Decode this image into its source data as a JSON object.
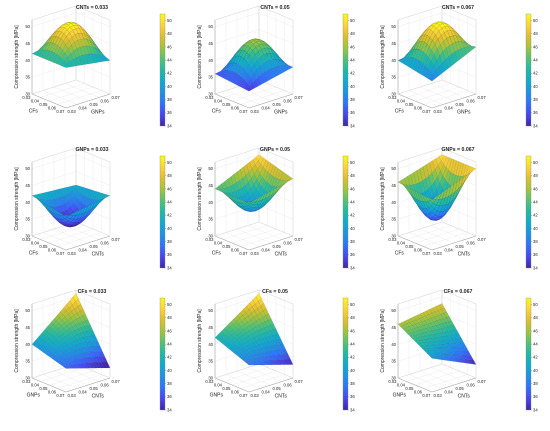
{
  "colormap": [
    "#3e26a8",
    "#4745f1",
    "#2f72fb",
    "#1d92e5",
    "#0fabce",
    "#20b9a6",
    "#54c272",
    "#a1c43c",
    "#dcbf2e",
    "#fcd23a",
    "#f9fb15"
  ],
  "colorbar_ticks": [
    "34",
    "36",
    "38",
    "40",
    "42",
    "44",
    "46",
    "48",
    "50"
  ],
  "chart_data": [
    {
      "type": "surface",
      "title": "CNTs = 0.033",
      "xlabel": "CFs",
      "ylabel": "GNPs",
      "zlabel": "Compression strength [MPa]",
      "x_ticks": [
        "0.03",
        "0.04",
        "0.05",
        "0.06",
        "0.07"
      ],
      "y_ticks": [
        "0.03",
        "0.04",
        "0.05",
        "0.06",
        "0.07"
      ],
      "z_ticks": [
        "30",
        "35",
        "40",
        "45",
        "50"
      ],
      "zlim": [
        30,
        52
      ],
      "clim": [
        34,
        51
      ],
      "corners": {
        "x_lo_y_lo": 42,
        "x_lo_y_hi": 44,
        "x_hi_y_lo": 42,
        "x_hi_y_hi": 40
      },
      "peak": {
        "x": 0.05,
        "y": 0.05,
        "z": 51
      }
    },
    {
      "type": "surface",
      "title": "CNTs = 0.05",
      "xlabel": "CFs",
      "ylabel": "GNPs",
      "zlabel": "Compression strength [MPa]",
      "x_ticks": [
        "0.03",
        "0.04",
        "0.05",
        "0.06",
        "0.07"
      ],
      "y_ticks": [
        "0.03",
        "0.04",
        "0.05",
        "0.06",
        "0.07"
      ],
      "z_ticks": [
        "30",
        "35",
        "40",
        "45",
        "50"
      ],
      "zlim": [
        30,
        52
      ],
      "clim": [
        34,
        51
      ],
      "corners": {
        "x_lo_y_lo": 36,
        "x_lo_y_hi": 38,
        "x_hi_y_lo": 35,
        "x_hi_y_hi": 38
      },
      "peak": {
        "x": 0.05,
        "y": 0.05,
        "z": 46
      }
    },
    {
      "type": "surface",
      "title": "CNTs = 0.067",
      "xlabel": "CFs",
      "ylabel": "GNPs",
      "zlabel": "Compression strength [MPa]",
      "x_ticks": [
        "0.03",
        "0.04",
        "0.05",
        "0.06",
        "0.07"
      ],
      "y_ticks": [
        "0.03",
        "0.04",
        "0.05",
        "0.06",
        "0.07"
      ],
      "z_ticks": [
        "30",
        "35",
        "40",
        "45",
        "50"
      ],
      "zlim": [
        30,
        52
      ],
      "clim": [
        34,
        51
      ],
      "corners": {
        "x_lo_y_lo": 40,
        "x_lo_y_hi": 42,
        "x_hi_y_lo": 38,
        "x_hi_y_hi": 44
      },
      "peak": {
        "x": 0.05,
        "y": 0.05,
        "z": 51
      }
    },
    {
      "type": "surface",
      "title": "GNPs = 0.033",
      "xlabel": "CFs",
      "ylabel": "CNTs",
      "zlabel": "Compression strength [MPa]",
      "x_ticks": [
        "0.03",
        "0.04",
        "0.05",
        "0.06",
        "0.07"
      ],
      "y_ticks": [
        "0.03",
        "0.04",
        "0.05",
        "0.06",
        "0.07"
      ],
      "z_ticks": [
        "30",
        "35",
        "40",
        "45",
        "50"
      ],
      "zlim": [
        30,
        52
      ],
      "clim": [
        34,
        51
      ],
      "corners": {
        "x_lo_y_lo": 42,
        "x_lo_y_hi": 41,
        "x_hi_y_lo": 40,
        "x_hi_y_hi": 42
      },
      "peak": {
        "x": 0.05,
        "y": 0.05,
        "z": 33
      }
    },
    {
      "type": "surface",
      "title": "GNPs = 0.05",
      "xlabel": "CFs",
      "ylabel": "CNTs",
      "zlabel": "Compression strength [MPa]",
      "x_ticks": [
        "0.03",
        "0.04",
        "0.05",
        "0.06",
        "0.07"
      ],
      "y_ticks": [
        "0.03",
        "0.04",
        "0.05",
        "0.06",
        "0.07"
      ],
      "z_ticks": [
        "30",
        "35",
        "40",
        "45",
        "50"
      ],
      "zlim": [
        30,
        52
      ],
      "clim": [
        34,
        51
      ],
      "corners": {
        "x_lo_y_lo": 44,
        "x_lo_y_hi": 50,
        "x_hi_y_lo": 44,
        "x_hi_y_hi": 47
      },
      "peak": {
        "x": 0.05,
        "y": 0.05,
        "z": 38
      }
    },
    {
      "type": "surface",
      "title": "GNPs = 0.067",
      "xlabel": "CFs",
      "ylabel": "CNTs",
      "zlabel": "Compression strength [MPa]",
      "x_ticks": [
        "0.03",
        "0.04",
        "0.05",
        "0.06",
        "0.07"
      ],
      "y_ticks": [
        "0.03",
        "0.04",
        "0.05",
        "0.06",
        "0.07"
      ],
      "z_ticks": [
        "30",
        "35",
        "40",
        "45",
        "50"
      ],
      "zlim": [
        30,
        52
      ],
      "clim": [
        34,
        51
      ],
      "corners": {
        "x_lo_y_lo": 46,
        "x_lo_y_hi": 50,
        "x_hi_y_lo": 45,
        "x_hi_y_hi": 50
      },
      "peak": {
        "x": 0.05,
        "y": 0.05,
        "z": 35
      }
    },
    {
      "type": "surface",
      "title": "CFs = 0.033",
      "xlabel": "GNPs",
      "ylabel": "CNTs",
      "zlabel": "Compression strength [MPa]",
      "x_ticks": [
        "0.03",
        "0.04",
        "0.05",
        "0.06",
        "0.07"
      ],
      "y_ticks": [
        "0.03",
        "0.04",
        "0.05",
        "0.06",
        "0.07"
      ],
      "z_ticks": [
        "30",
        "35",
        "40",
        "45",
        "50"
      ],
      "zlim": [
        30,
        52
      ],
      "clim": [
        34,
        51
      ],
      "corners": {
        "x_lo_y_lo": 40,
        "x_lo_y_hi": 51,
        "x_hi_y_lo": 37,
        "x_hi_y_hi": 33
      },
      "peak": {
        "x": 0.05,
        "y": 0.05,
        "z": 42
      }
    },
    {
      "type": "surface",
      "title": "CFs = 0.05",
      "xlabel": "GNPs",
      "ylabel": "CNTs",
      "zlabel": "Compression strength [MPa]",
      "x_ticks": [
        "0.03",
        "0.04",
        "0.05",
        "0.06",
        "0.07"
      ],
      "y_ticks": [
        "0.03",
        "0.04",
        "0.05",
        "0.06",
        "0.07"
      ],
      "z_ticks": [
        "30",
        "35",
        "40",
        "45",
        "50"
      ],
      "zlim": [
        30,
        52
      ],
      "clim": [
        34,
        51
      ],
      "corners": {
        "x_lo_y_lo": 42,
        "x_lo_y_hi": 51,
        "x_hi_y_lo": 38,
        "x_hi_y_hi": 34
      },
      "peak": {
        "x": 0.05,
        "y": 0.05,
        "z": 42
      }
    },
    {
      "type": "surface",
      "title": "CFs = 0.067",
      "xlabel": "GNPs",
      "ylabel": "CNTs",
      "zlabel": "Compression strength [MPa]",
      "x_ticks": [
        "0.03",
        "0.04",
        "0.05",
        "0.06",
        "0.07"
      ],
      "y_ticks": [
        "0.03",
        "0.04",
        "0.05",
        "0.06",
        "0.07"
      ],
      "z_ticks": [
        "30",
        "35",
        "40",
        "45",
        "50"
      ],
      "zlim": [
        30,
        52
      ],
      "clim": [
        34,
        51
      ],
      "corners": {
        "x_lo_y_lo": 46,
        "x_lo_y_hi": 48,
        "x_hi_y_lo": 40,
        "x_hi_y_hi": 34
      },
      "peak": {
        "x": 0.05,
        "y": 0.05,
        "z": 42
      }
    }
  ]
}
